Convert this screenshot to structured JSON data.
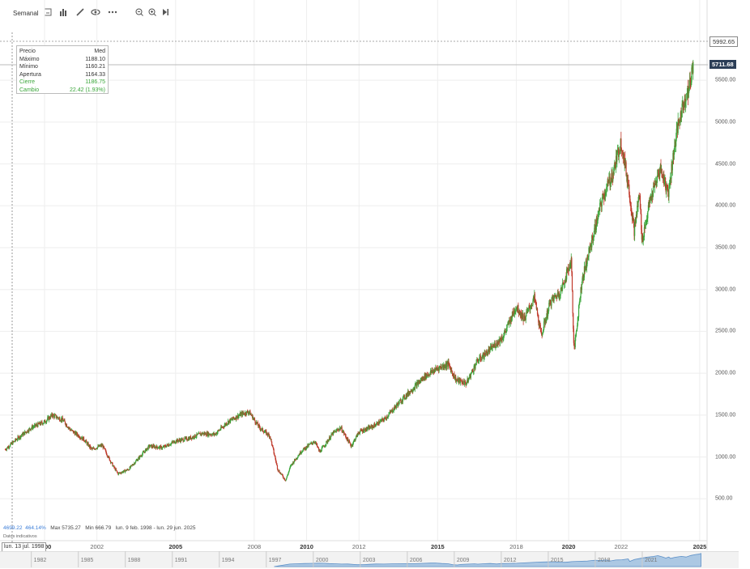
{
  "toolbar": {
    "interval_label": "Semanal",
    "icons": [
      "candles-icon",
      "bar-chart-icon",
      "draw-pen-icon",
      "eye-icon",
      "more-icon",
      "zoom-out-icon",
      "zoom-in-icon",
      "jump-end-icon"
    ]
  },
  "infobox": {
    "header_left": "Precio",
    "header_right": "Med",
    "rows": [
      {
        "label": "Máximo",
        "value": "1188.10"
      },
      {
        "label": "Mínimo",
        "value": "1160.21"
      },
      {
        "label": "Apertura",
        "value": "1164.33"
      },
      {
        "label": "Cierre",
        "value": "1186.75"
      },
      {
        "label": "Cambio",
        "value": "22.42 (1.93%)"
      }
    ]
  },
  "price_tags": {
    "top": "5992.65",
    "current": "5711.68"
  },
  "stats": {
    "change": "4699.22",
    "change_pct": "464.14%",
    "max": "Max 5735.27",
    "min": "Min 666.79",
    "range": "lun. 9 feb. 1998 - lun. 29 jun. 2025"
  },
  "data_indicators_label": "Datos indicativos",
  "current_date": "lun. 13 jul. 1998",
  "colors": {
    "up": "#3aa63a",
    "down": "#c0392b",
    "tag_current": "#2c3e57",
    "navigator": "#8fb6dd"
  },
  "chart_data": {
    "type": "candlestick",
    "interval": "weekly",
    "yticks": [
      "500.00",
      "1000.00",
      "1500.00",
      "2000.00",
      "2500.00",
      "3000.00",
      "3500.00",
      "4000.00",
      "4500.00",
      "5000.00",
      "5500.00"
    ],
    "xticks": [
      "2000",
      "2002",
      "2005",
      "2008",
      "2010",
      "2012",
      "2015",
      "2018",
      "2020",
      "2022",
      "2025"
    ],
    "xticks_bold": [
      "2000",
      "2005",
      "2010",
      "2015",
      "2020",
      "2025"
    ],
    "ylim": [
      0,
      6400
    ],
    "navigator_ticks": [
      "1982",
      "1985",
      "1988",
      "1991",
      "1994",
      "1997",
      "2000",
      "2003",
      "2006",
      "2009",
      "2012",
      "2015",
      "2018",
      "2021"
    ],
    "close_series": [
      [
        1998.5,
        1090
      ],
      [
        1999.0,
        1230
      ],
      [
        1999.5,
        1350
      ],
      [
        2000.0,
        1420
      ],
      [
        2000.3,
        1500
      ],
      [
        2000.7,
        1440
      ],
      [
        2001.0,
        1320
      ],
      [
        2001.5,
        1210
      ],
      [
        2001.8,
        1090
      ],
      [
        2002.2,
        1140
      ],
      [
        2002.6,
        900
      ],
      [
        2002.8,
        800
      ],
      [
        2003.2,
        850
      ],
      [
        2003.6,
        990
      ],
      [
        2004.0,
        1130
      ],
      [
        2004.5,
        1110
      ],
      [
        2005.0,
        1190
      ],
      [
        2005.5,
        1220
      ],
      [
        2006.0,
        1280
      ],
      [
        2006.5,
        1270
      ],
      [
        2007.0,
        1420
      ],
      [
        2007.5,
        1510
      ],
      [
        2007.8,
        1540
      ],
      [
        2008.2,
        1350
      ],
      [
        2008.6,
        1250
      ],
      [
        2008.9,
        850
      ],
      [
        2009.2,
        720
      ],
      [
        2009.4,
        900
      ],
      [
        2009.8,
        1070
      ],
      [
        2010.3,
        1190
      ],
      [
        2010.5,
        1060
      ],
      [
        2011.0,
        1280
      ],
      [
        2011.3,
        1350
      ],
      [
        2011.7,
        1130
      ],
      [
        2012.0,
        1300
      ],
      [
        2012.5,
        1360
      ],
      [
        2013.0,
        1460
      ],
      [
        2013.5,
        1640
      ],
      [
        2014.0,
        1800
      ],
      [
        2014.5,
        1960
      ],
      [
        2015.0,
        2060
      ],
      [
        2015.4,
        2110
      ],
      [
        2015.7,
        1920
      ],
      [
        2016.1,
        1880
      ],
      [
        2016.5,
        2140
      ],
      [
        2017.0,
        2280
      ],
      [
        2017.5,
        2440
      ],
      [
        2018.0,
        2800
      ],
      [
        2018.3,
        2650
      ],
      [
        2018.7,
        2900
      ],
      [
        2018.95,
        2450
      ],
      [
        2019.3,
        2850
      ],
      [
        2019.7,
        2980
      ],
      [
        2020.1,
        3350
      ],
      [
        2020.2,
        2250
      ],
      [
        2020.5,
        3100
      ],
      [
        2020.9,
        3600
      ],
      [
        2021.3,
        4100
      ],
      [
        2021.7,
        4400
      ],
      [
        2022.0,
        4770
      ],
      [
        2022.3,
        4200
      ],
      [
        2022.5,
        3700
      ],
      [
        2022.7,
        4150
      ],
      [
        2022.8,
        3580
      ],
      [
        2023.1,
        4050
      ],
      [
        2023.5,
        4450
      ],
      [
        2023.8,
        4150
      ],
      [
        2024.1,
        4850
      ],
      [
        2024.4,
        5250
      ],
      [
        2024.6,
        5400
      ],
      [
        2024.75,
        5711
      ]
    ]
  }
}
